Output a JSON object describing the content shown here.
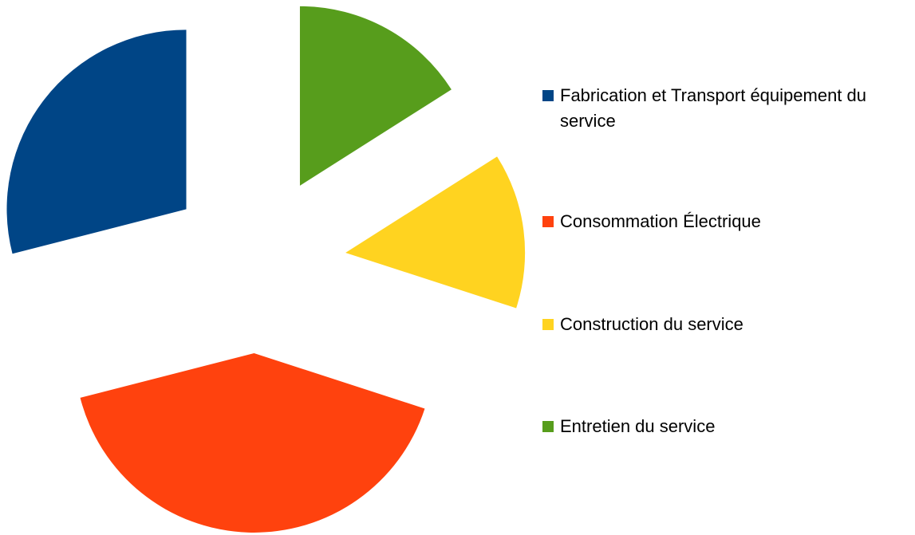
{
  "chart_data": {
    "type": "pie",
    "exploded": true,
    "categories": [
      "Fabrication et Transport équipement du service",
      "Consommation Électrique",
      "Construction du service",
      "Entretien du service"
    ],
    "values": [
      29,
      41,
      14,
      16
    ],
    "colors": [
      "#004586",
      "#ff420e",
      "#ffd320",
      "#579d1c"
    ],
    "legend": "right"
  }
}
